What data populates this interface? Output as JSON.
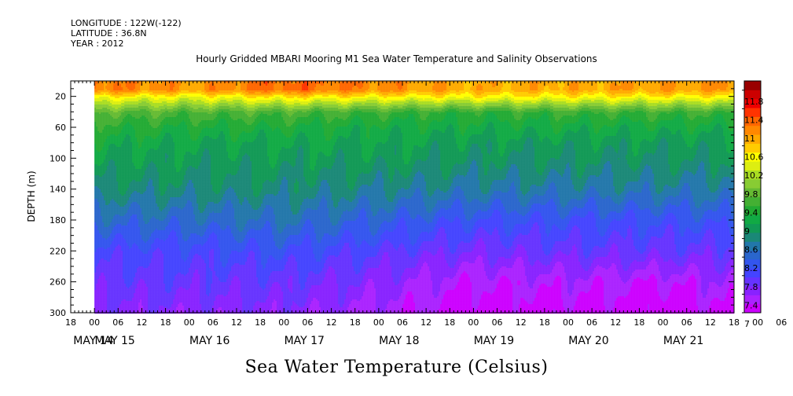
{
  "header": {
    "longitude": "LONGITUDE : 122W(-122)",
    "latitude": "LATITUDE : 36.8N",
    "year": "YEAR : 2012"
  },
  "chart_data": {
    "type": "heatmap",
    "title": "Hourly Gridded MBARI Mooring M1 Sea Water Temperature and Salinity Observations",
    "subtitle": "Sea Water Temperature (Celsius)",
    "ylabel": "DEPTH (m)",
    "ylim": [
      300,
      0
    ],
    "yticks": [
      20,
      60,
      100,
      140,
      180,
      220,
      260,
      300
    ],
    "x_start": "MAY 14 18:00",
    "x_end": "MAY 21 18:00",
    "hour_tick_labels": [
      "18",
      "00",
      "06",
      "12",
      "18",
      "00",
      "06",
      "12",
      "18",
      "00",
      "06",
      "12",
      "18",
      "00",
      "06",
      "12",
      "18",
      "00",
      "06",
      "12",
      "18",
      "00",
      "06",
      "12",
      "18",
      "00",
      "06",
      "12",
      "18",
      "00",
      "06",
      "12",
      "18"
    ],
    "day_labels": [
      "MAY 14",
      "MAY 15",
      "MAY 16",
      "MAY 17",
      "MAY 18",
      "MAY 19",
      "MAY 20",
      "MAY 21"
    ],
    "data_start": "MAY 15 00:00",
    "colorbar": {
      "labels": [
        "11.8",
        "11.4",
        "11",
        "10.6",
        "10.2",
        "9.8",
        "9.4",
        "9",
        "8.6",
        "8.2",
        "7.8",
        "7.4",
        "7"
      ],
      "levels": [
        7.0,
        7.2,
        7.4,
        7.6,
        7.8,
        8.0,
        8.2,
        8.4,
        8.6,
        8.8,
        9.0,
        9.2,
        9.4,
        9.6,
        9.8,
        10.0,
        10.2,
        10.4,
        10.6,
        10.8,
        11.0,
        11.2,
        11.4,
        11.6,
        11.8,
        12.0
      ],
      "colors": [
        "#cc00ff",
        "#aa22ff",
        "#8822ff",
        "#6633ff",
        "#4444ff",
        "#3355ee",
        "#2a66cc",
        "#2277aa",
        "#1a8877",
        "#119955",
        "#11aa44",
        "#22aa33",
        "#44b033",
        "#66bb33",
        "#88cc33",
        "#aadd22",
        "#ddee11",
        "#ffff00",
        "#ffcc00",
        "#ffaa00",
        "#ff8800",
        "#ff6600",
        "#ff3300",
        "#ee0000",
        "#cc0000",
        "#990000"
      ]
    },
    "depth_profiles": [
      {
        "time": "MAY 15 00:00",
        "depth": [
          10,
          20,
          40,
          60,
          80,
          100,
          140,
          180,
          220,
          260,
          300
        ],
        "temperature": [
          11.2,
          10.5,
          9.6,
          9.3,
          9.1,
          9.0,
          8.7,
          8.3,
          7.9,
          7.7,
          7.5
        ]
      },
      {
        "time": "MAY 16 00:00",
        "depth": [
          10,
          20,
          40,
          60,
          80,
          100,
          140,
          180,
          220,
          260,
          300
        ],
        "temperature": [
          11.0,
          10.4,
          9.5,
          9.2,
          9.0,
          8.9,
          8.7,
          8.3,
          7.9,
          7.7,
          7.5
        ]
      },
      {
        "time": "MAY 17 00:00",
        "depth": [
          10,
          20,
          40,
          60,
          80,
          100,
          140,
          180,
          220,
          260,
          300
        ],
        "temperature": [
          11.3,
          10.6,
          9.5,
          9.2,
          9.0,
          8.9,
          8.7,
          8.4,
          8.0,
          7.7,
          7.5
        ]
      },
      {
        "time": "MAY 18 00:00",
        "depth": [
          10,
          20,
          40,
          60,
          80,
          100,
          140,
          180,
          220,
          260,
          300
        ],
        "temperature": [
          11.1,
          10.5,
          9.4,
          9.1,
          9.0,
          8.9,
          8.6,
          8.2,
          7.8,
          7.5,
          7.3
        ]
      },
      {
        "time": "MAY 19 00:00",
        "depth": [
          10,
          20,
          40,
          60,
          80,
          100,
          140,
          180,
          220,
          260,
          300
        ],
        "temperature": [
          10.9,
          10.5,
          9.3,
          9.1,
          8.9,
          8.8,
          8.5,
          8.0,
          7.6,
          7.2,
          7.0
        ]
      },
      {
        "time": "MAY 20 00:00",
        "depth": [
          10,
          20,
          40,
          60,
          80,
          100,
          140,
          180,
          220,
          260,
          300
        ],
        "temperature": [
          10.9,
          10.5,
          9.4,
          9.1,
          8.9,
          8.8,
          8.5,
          8.0,
          7.7,
          7.3,
          7.1
        ]
      },
      {
        "time": "MAY 21 00:00",
        "depth": [
          10,
          20,
          40,
          60,
          80,
          100,
          140,
          180,
          220,
          260,
          300
        ],
        "temperature": [
          11.0,
          10.5,
          9.4,
          9.1,
          8.9,
          8.8,
          8.5,
          8.0,
          7.7,
          7.2,
          7.0
        ]
      },
      {
        "time": "MAY 21 18:00",
        "depth": [
          10,
          20,
          40,
          60,
          80,
          100,
          140,
          180,
          220,
          260,
          300
        ],
        "temperature": [
          11.0,
          10.5,
          9.4,
          9.1,
          8.9,
          8.8,
          8.5,
          8.1,
          7.7,
          7.4,
          7.2
        ]
      }
    ]
  }
}
